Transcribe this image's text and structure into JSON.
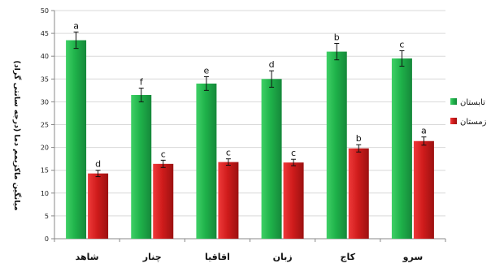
{
  "chart_data": {
    "type": "bar",
    "title": "",
    "xlabel": "",
    "ylabel": "میانگین ماکزیمم دما (درجه سانتی گراد)",
    "ylim": [
      0,
      50
    ],
    "yticks": [
      0,
      5,
      10,
      15,
      20,
      25,
      30,
      35,
      40,
      45,
      50
    ],
    "grid": true,
    "legend_position": "right",
    "categories": [
      "شاهد",
      "چنار",
      "اقاقیا",
      "زبان",
      "کاج",
      "سرو"
    ],
    "series": [
      {
        "name": "تابستان",
        "color": "#1fb24a",
        "values": [
          43.5,
          31.5,
          34.0,
          35.0,
          41.0,
          39.5
        ],
        "errors": [
          1.8,
          1.5,
          1.5,
          1.8,
          1.8,
          1.7
        ],
        "significance": [
          "a",
          "f",
          "e",
          "d",
          "b",
          "c"
        ]
      },
      {
        "name": "زمستان",
        "color": "#d01c1c",
        "values": [
          14.3,
          16.4,
          16.8,
          16.7,
          19.8,
          21.4
        ],
        "errors": [
          0.7,
          0.8,
          0.7,
          0.7,
          0.8,
          0.9
        ],
        "significance": [
          "d",
          "c",
          "c",
          "c",
          "b",
          "a"
        ]
      }
    ]
  }
}
